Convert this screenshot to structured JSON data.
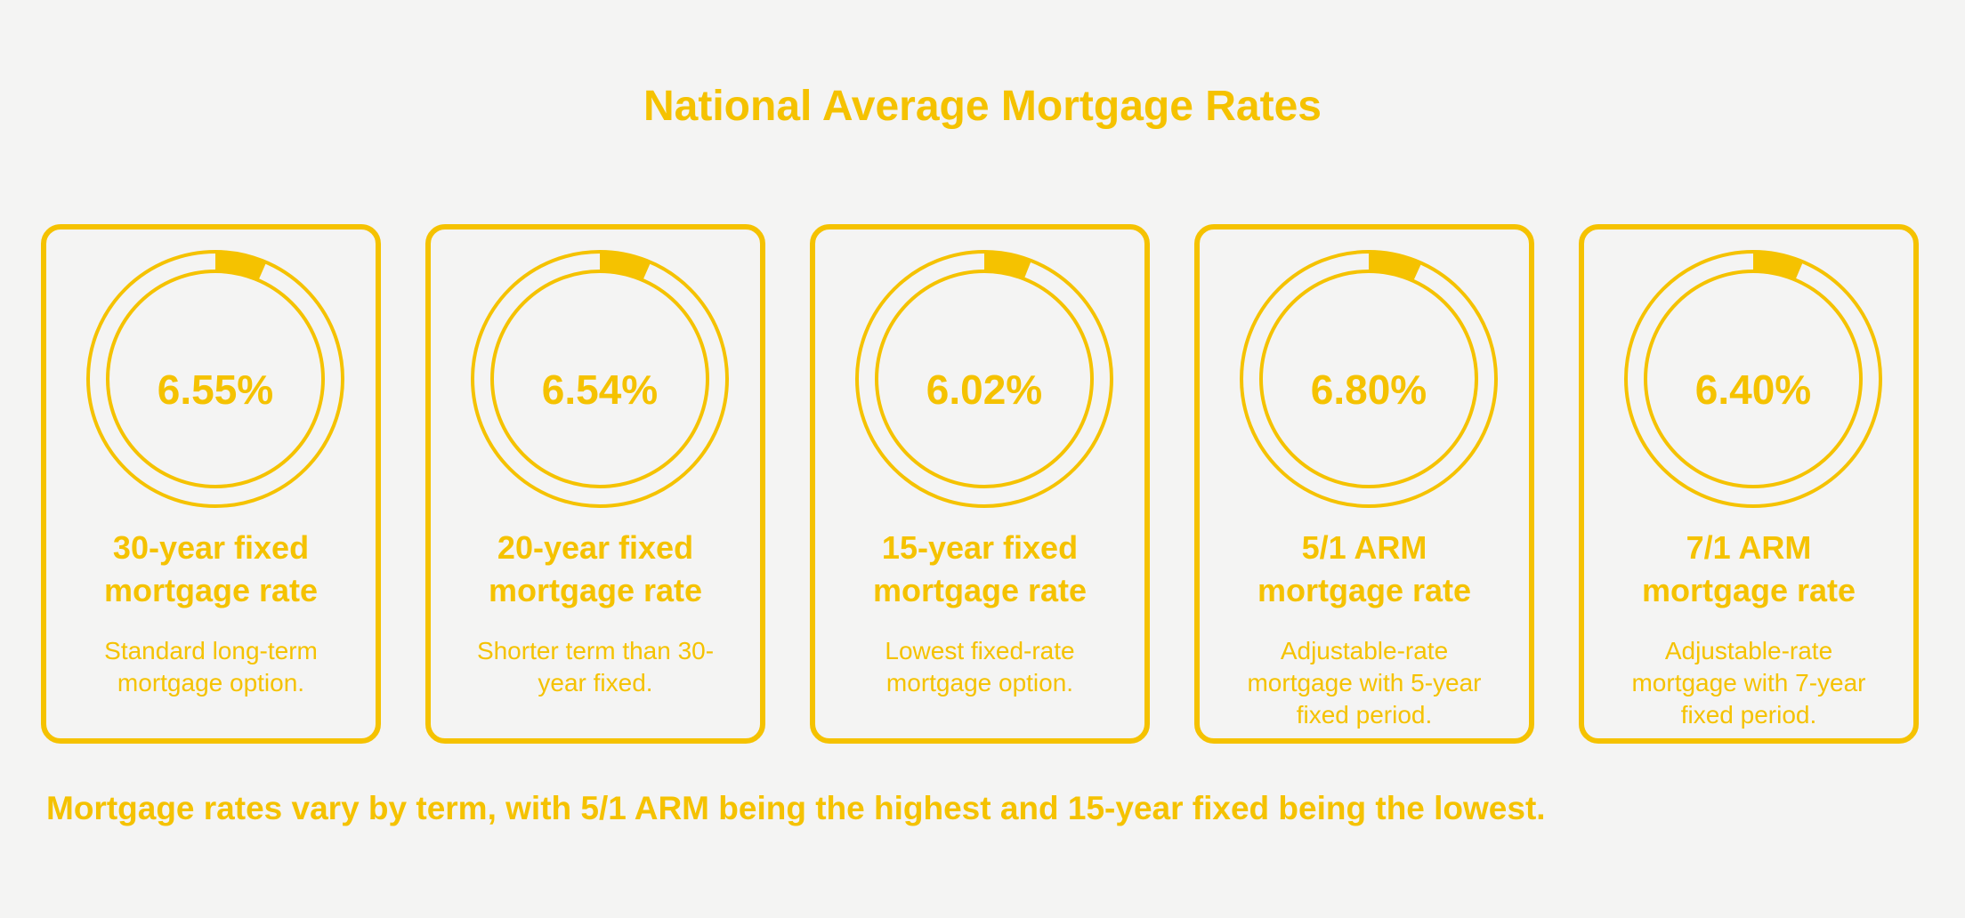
{
  "title": "National Average Mortgage Rates",
  "colors": {
    "accent": "#f5c200",
    "background": "#f4f4f3"
  },
  "cards": [
    {
      "value": "6.55%",
      "label_line1": "30-year fixed",
      "label_line2": "mortgage rate",
      "description": "Standard long-term mortgage option."
    },
    {
      "value": "6.54%",
      "label_line1": "20-year fixed",
      "label_line2": "mortgage rate",
      "description": "Shorter term than 30-year fixed."
    },
    {
      "value": "6.02%",
      "label_line1": "15-year fixed",
      "label_line2": "mortgage rate",
      "description": "Lowest fixed-rate mortgage option."
    },
    {
      "value": "6.80%",
      "label_line1": "5/1 ARM",
      "label_line2": "mortgage rate",
      "description": "Adjustable-rate mortgage with 5-year fixed period."
    },
    {
      "value": "6.40%",
      "label_line1": "7/1 ARM",
      "label_line2": "mortgage rate",
      "description": "Adjustable-rate mortgage with 7-year fixed period."
    }
  ],
  "footer": "Mortgage rates vary by term, with 5/1 ARM being the highest and 15-year fixed being the lowest.",
  "chart_data": {
    "type": "pie",
    "title": "National Average Mortgage Rates",
    "categories": [
      "30-year fixed mortgage rate",
      "20-year fixed mortgage rate",
      "15-year fixed mortgage rate",
      "5/1 ARM mortgage rate",
      "7/1 ARM mortgage rate"
    ],
    "values": [
      6.55,
      6.54,
      6.02,
      6.8,
      6.4
    ],
    "unit": "%",
    "gauge_max": 100
  }
}
